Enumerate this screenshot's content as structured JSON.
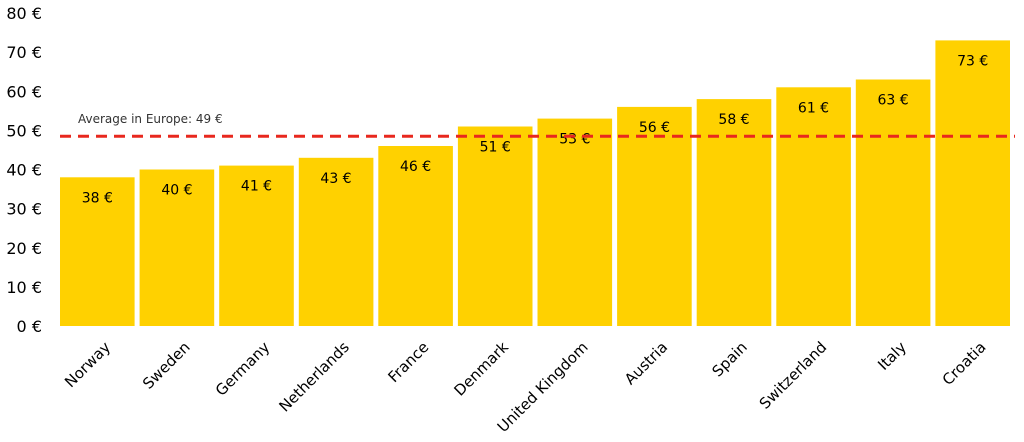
{
  "chart_data": {
    "type": "bar",
    "title": "",
    "xlabel": "",
    "ylabel": "",
    "ylim": [
      0,
      80
    ],
    "yticks": [
      0,
      10,
      20,
      30,
      40,
      50,
      60,
      70,
      80
    ],
    "ytick_suffix": " €",
    "grid": false,
    "legend": "none",
    "categories": [
      "Norway",
      "Sweden",
      "Germany",
      "Netherlands",
      "France",
      "Denmark",
      "United Kingdom",
      "Austria",
      "Spain",
      "Switzerland",
      "Italy",
      "Croatia"
    ],
    "values": [
      38,
      40,
      41,
      43,
      46,
      51,
      53,
      56,
      58,
      61,
      63,
      73
    ],
    "data_labels": [
      "38 €",
      "40 €",
      "41 €",
      "43 €",
      "46 €",
      "51 €",
      "53 €",
      "56 €",
      "58 €",
      "61 €",
      "63 €",
      "73 €"
    ],
    "ytick_labels": [
      "0 €",
      "10 €",
      "20 €",
      "30 €",
      "40 €",
      "50 €",
      "60 €",
      "70 €",
      "80 €"
    ],
    "average": {
      "value": 48.5,
      "label": "Average in Europe: 49 €"
    },
    "colors": {
      "bar": "#FFD100",
      "average_line": "#E8281E"
    }
  }
}
